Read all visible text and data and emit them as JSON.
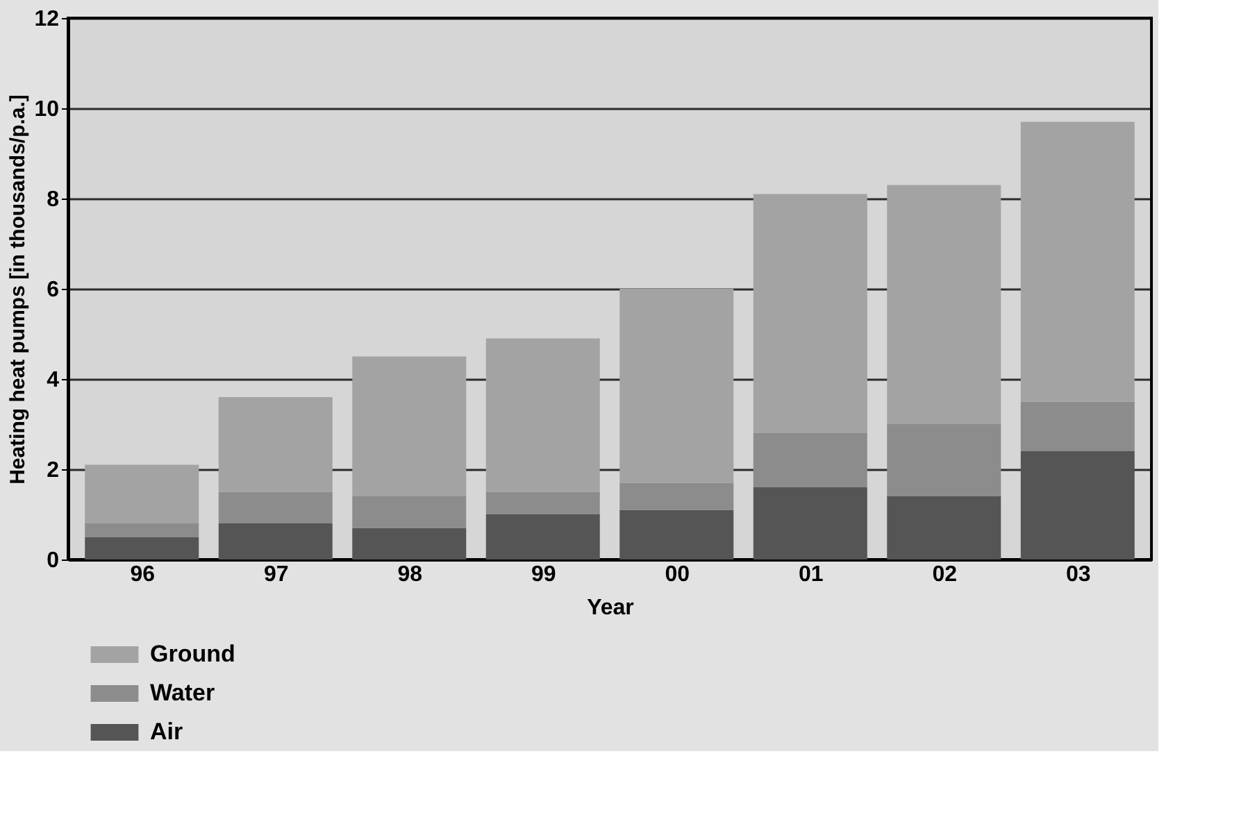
{
  "chart_data": {
    "type": "bar",
    "stacked": true,
    "xlabel": "Year",
    "ylabel": "Heating heat pumps [in thousands/p.a.]",
    "categories": [
      "96",
      "97",
      "98",
      "99",
      "00",
      "01",
      "02",
      "03"
    ],
    "series": [
      {
        "name": "Air",
        "color": "#555555",
        "values": [
          0.5,
          0.8,
          0.7,
          1.0,
          1.1,
          1.6,
          1.4,
          2.4
        ]
      },
      {
        "name": "Water",
        "color": "#8c8c8c",
        "values": [
          0.3,
          0.7,
          0.7,
          0.5,
          0.6,
          1.2,
          1.6,
          1.1
        ]
      },
      {
        "name": "Ground",
        "color": "#a3a3a3",
        "values": [
          1.3,
          2.1,
          3.1,
          3.4,
          4.3,
          5.3,
          5.3,
          6.2
        ]
      }
    ],
    "ylim": [
      0,
      12
    ],
    "yticks": [
      0,
      2,
      4,
      6,
      8,
      10,
      12
    ],
    "grid": "y",
    "legend": "bottom left"
  }
}
